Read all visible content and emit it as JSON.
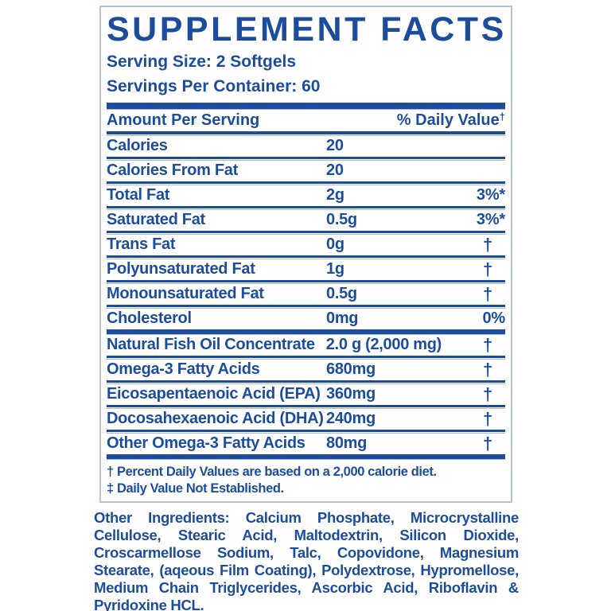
{
  "colors": {
    "blue": "#1c4d9c",
    "rule_light": "#a9bdd9",
    "box_border": "#b6c3d2"
  },
  "label": {
    "title": "SUPPLEMENT FACTS",
    "serving_size": "Serving Size: 2 Softgels",
    "servings_per_container": "Servings Per Container: 60",
    "columns": {
      "amount_header": "Amount Per Serving",
      "daily_value_header": "% Daily Value",
      "daily_value_sup": "†"
    },
    "section1": [
      {
        "name": "Calories",
        "amount": "20",
        "dv": "",
        "dagger": false
      },
      {
        "name": "Calories From Fat",
        "amount": "20",
        "dv": "",
        "dagger": false
      },
      {
        "name": "Total Fat",
        "amount": "2g",
        "dv": "3%*",
        "dagger": false
      },
      {
        "name": "Saturated Fat",
        "amount": "0.5g",
        "dv": "3%*",
        "dagger": false
      },
      {
        "name": "Trans Fat",
        "amount": "0g",
        "dv": "†",
        "dagger": true
      },
      {
        "name": "Polyunsaturated Fat",
        "amount": "1g",
        "dv": "†",
        "dagger": true
      },
      {
        "name": "Monounsaturated Fat",
        "amount": "0.5g",
        "dv": "†",
        "dagger": true
      },
      {
        "name": "Cholesterol",
        "amount": "0mg",
        "dv": "0%",
        "dagger": false
      }
    ],
    "section2": [
      {
        "name": "Natural Fish Oil Concentrate",
        "amount": "2.0 g (2,000 mg)",
        "dv": "†",
        "dagger": true
      },
      {
        "name": "Omega-3 Fatty Acids",
        "amount": "680mg",
        "dv": "†",
        "dagger": true
      },
      {
        "name": "Eicosapentaenoic Acid (EPA)",
        "amount": "360mg",
        "dv": "†",
        "dagger": true
      },
      {
        "name": "Docosahexaenoic Acid (DHA)",
        "amount": "240mg",
        "dv": "†",
        "dagger": true
      },
      {
        "name": "Other Omega-3 Fatty Acids",
        "amount": "80mg",
        "dv": "†",
        "dagger": true
      }
    ],
    "footnotes": [
      "† Percent Daily Values are based on a 2,000 calorie diet.",
      "‡ Daily Value Not Established."
    ],
    "other_ingredients_label": "Other Ingredients:",
    "other_ingredients_text": " Calcium Phosphate, Microcrystalline Cellulose, Stearic Acid, Maltodextrin, Silicon Dioxide, Croscarmellose Sodium, Talc, Copovidone, Magnesium Stearate, (aqeous Film Coating), Polydextrose, Hypromellose, Medium Chain Triglycerides, Ascorbic Acid, Riboflavin & Pyridoxine HCL."
  }
}
